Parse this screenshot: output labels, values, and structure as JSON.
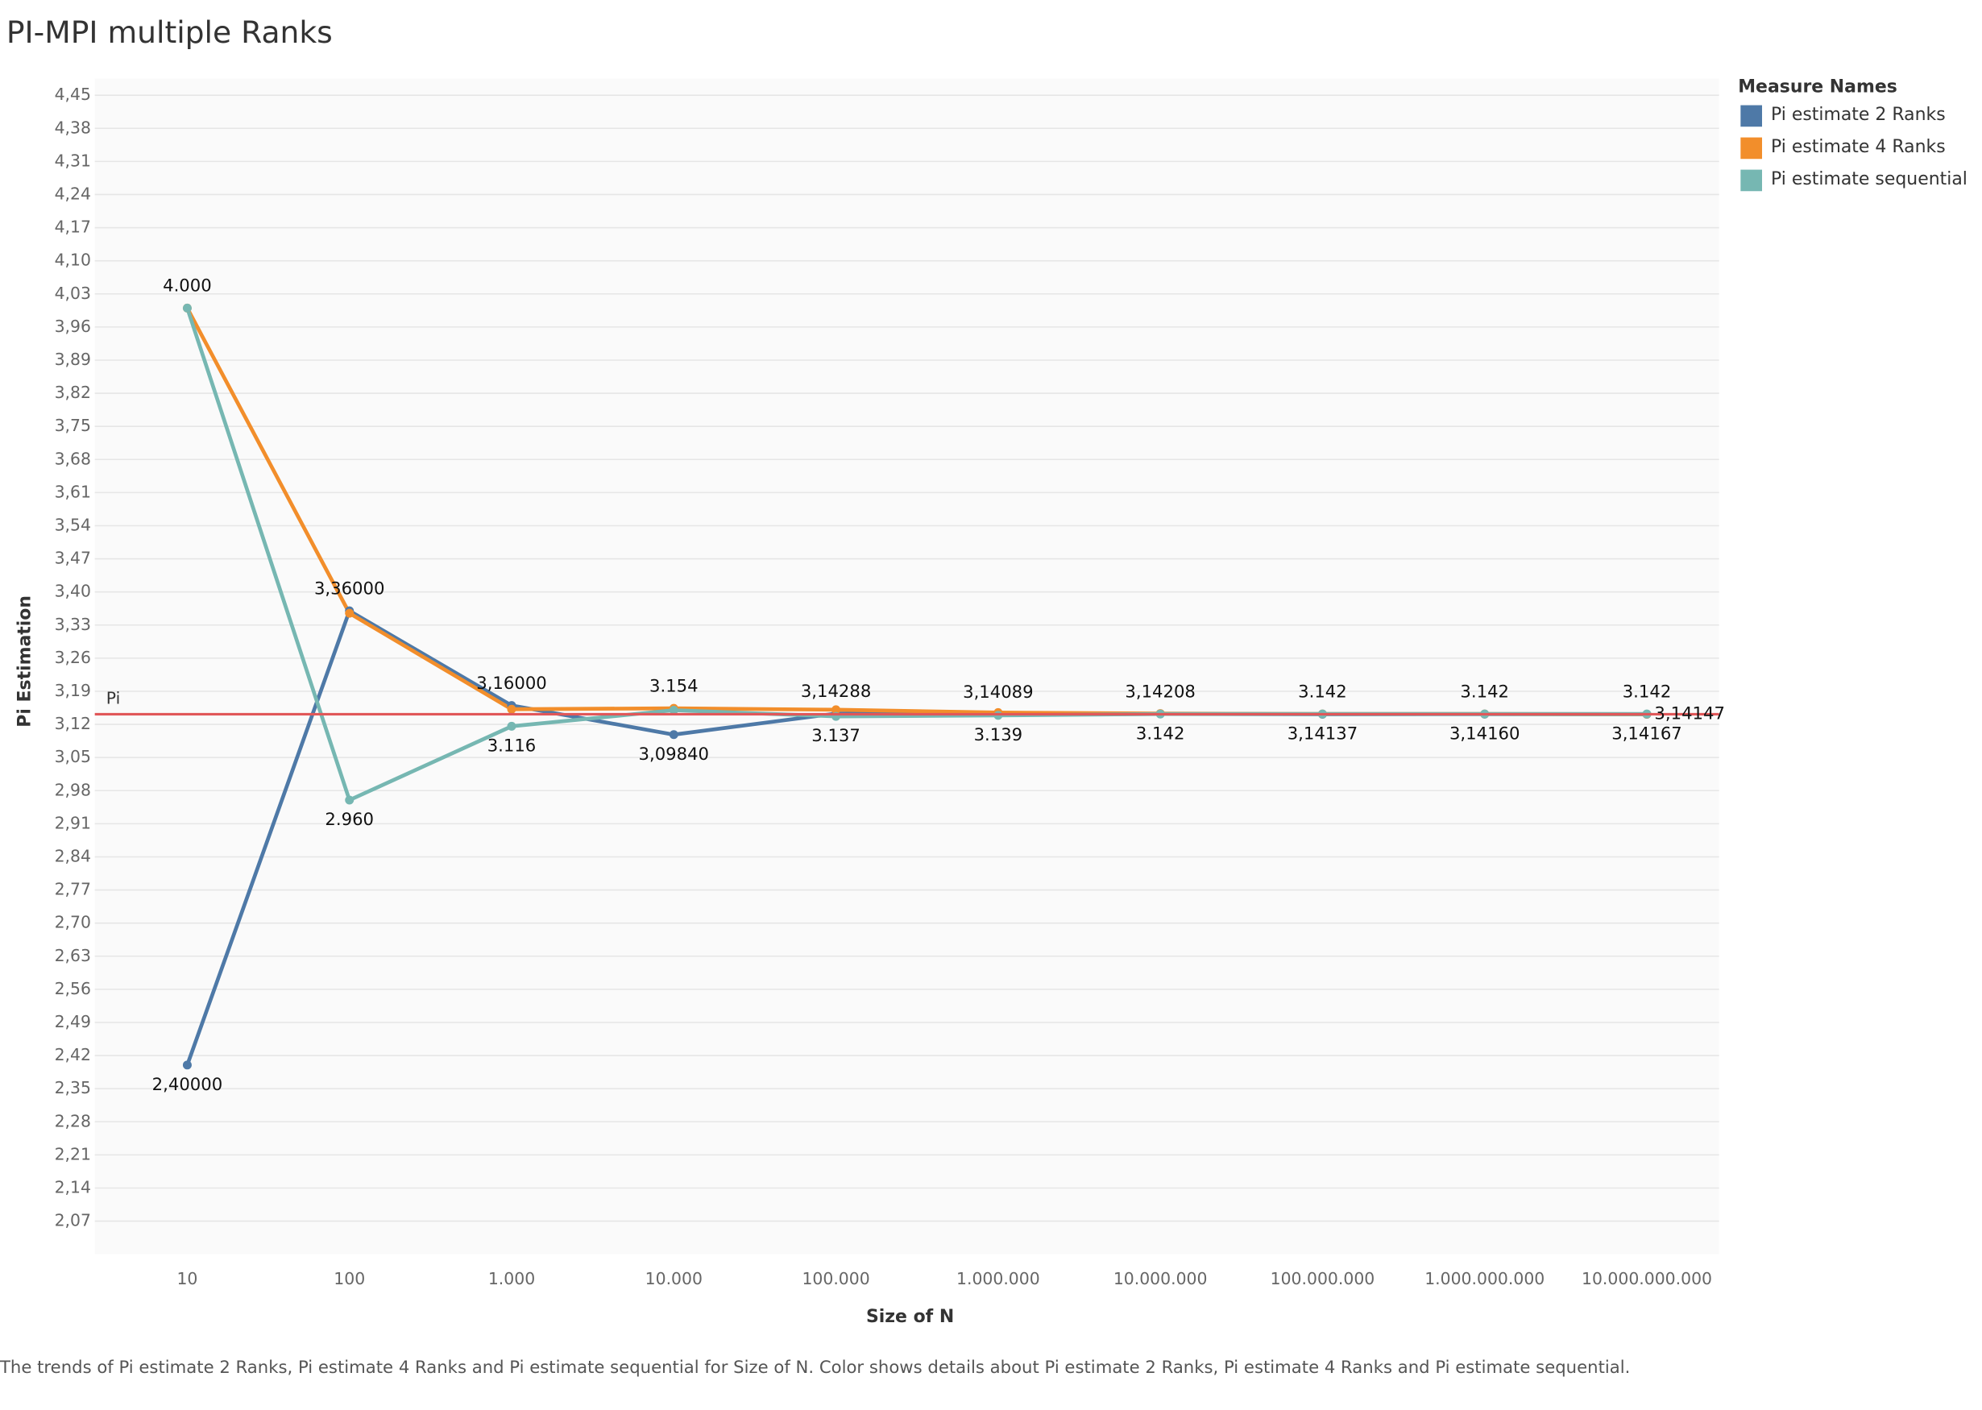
{
  "chart_data": {
    "type": "line",
    "title": "PI-MPI multiple Ranks",
    "x_label": "Size of N",
    "y_label": "Pi Estimation",
    "legend_title": "Measure Names",
    "legend": "top-right",
    "grid": true,
    "caption": "The trends of Pi estimate 2 Ranks, Pi estimate 4 Ranks and Pi estimate sequential for Size of N.  Color shows details about Pi estimate 2 Ranks, Pi estimate 4 Ranks and Pi estimate sequential.",
    "categories": [
      "10",
      "100",
      "1.000",
      "10.000",
      "100.000",
      "1.000.000",
      "10.000.000",
      "100.000.000",
      "1.000.000.000",
      "10.000.000.000"
    ],
    "series": [
      {
        "name": "Pi estimate 2 Ranks",
        "color": "#4e79a7",
        "values": [
          2.4,
          3.36,
          3.16,
          3.0984,
          3.14288,
          3.14089,
          3.14208,
          3.14137,
          3.1416,
          3.14147
        ],
        "value_labels": [
          "2,40000",
          "3,36000",
          "3,16000",
          "3,09840",
          "3,14288",
          "3,14089",
          "3,14208",
          "3,14137",
          "3,14160",
          "3,14147"
        ]
      },
      {
        "name": "Pi estimate 4 Ranks",
        "color": "#f28e2b",
        "values": [
          4.0,
          3.355,
          3.152,
          3.154,
          3.151,
          3.145,
          3.143,
          3.142,
          3.142,
          3.14167
        ],
        "value_labels": [
          "4.000",
          null,
          null,
          "3.154",
          null,
          null,
          null,
          "3.142",
          null,
          "3,14167"
        ]
      },
      {
        "name": "Pi estimate sequential",
        "color": "#76b7b2",
        "values": [
          4.0,
          2.96,
          3.116,
          3.15,
          3.137,
          3.139,
          3.142,
          3.142,
          3.142,
          3.142
        ],
        "value_labels": [
          null,
          "2.960",
          "3.116",
          null,
          "3.137",
          "3.139",
          "3.142",
          null,
          "3.142",
          "3.142"
        ]
      }
    ],
    "reference_line": {
      "label": "Pi",
      "value": 3.14159,
      "color": "#e15759"
    },
    "ylim": [
      2.0,
      4.485
    ],
    "yticks": [
      {
        "value": 2.07,
        "label": "2,07"
      },
      {
        "value": 2.14,
        "label": "2,14"
      },
      {
        "value": 2.21,
        "label": "2,21"
      },
      {
        "value": 2.28,
        "label": "2,28"
      },
      {
        "value": 2.35,
        "label": "2,35"
      },
      {
        "value": 2.42,
        "label": "2,42"
      },
      {
        "value": 2.49,
        "label": "2,49"
      },
      {
        "value": 2.56,
        "label": "2,56"
      },
      {
        "value": 2.63,
        "label": "2,63"
      },
      {
        "value": 2.7,
        "label": "2,70"
      },
      {
        "value": 2.77,
        "label": "2,77"
      },
      {
        "value": 2.84,
        "label": "2,84"
      },
      {
        "value": 2.91,
        "label": "2,91"
      },
      {
        "value": 2.98,
        "label": "2,98"
      },
      {
        "value": 3.05,
        "label": "3,05"
      },
      {
        "value": 3.12,
        "label": "3,12"
      },
      {
        "value": 3.19,
        "label": "3,19"
      },
      {
        "value": 3.26,
        "label": "3,26"
      },
      {
        "value": 3.33,
        "label": "3,33"
      },
      {
        "value": 3.4,
        "label": "3,40"
      },
      {
        "value": 3.47,
        "label": "3,47"
      },
      {
        "value": 3.54,
        "label": "3,54"
      },
      {
        "value": 3.61,
        "label": "3,61"
      },
      {
        "value": 3.68,
        "label": "3,68"
      },
      {
        "value": 3.75,
        "label": "3,75"
      },
      {
        "value": 3.82,
        "label": "3,82"
      },
      {
        "value": 3.89,
        "label": "3,89"
      },
      {
        "value": 3.96,
        "label": "3,96"
      },
      {
        "value": 4.03,
        "label": "4,03"
      },
      {
        "value": 4.1,
        "label": "4,10"
      },
      {
        "value": 4.17,
        "label": "4,17"
      },
      {
        "value": 4.24,
        "label": "4,24"
      },
      {
        "value": 4.31,
        "label": "4,31"
      },
      {
        "value": 4.38,
        "label": "4,38"
      },
      {
        "value": 4.45,
        "label": "4,45"
      }
    ]
  }
}
